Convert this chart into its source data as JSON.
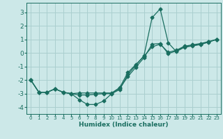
{
  "xlabel": "Humidex (Indice chaleur)",
  "bg_color": "#cce8e8",
  "grid_color": "#aacfcf",
  "line_color": "#1a6e60",
  "xlim": [
    -0.5,
    23.5
  ],
  "ylim": [
    -4.5,
    3.7
  ],
  "xticks": [
    0,
    1,
    2,
    3,
    4,
    5,
    6,
    7,
    8,
    9,
    10,
    11,
    12,
    13,
    14,
    15,
    16,
    17,
    18,
    19,
    20,
    21,
    22,
    23
  ],
  "yticks": [
    -4,
    -3,
    -2,
    -1,
    0,
    1,
    2,
    3
  ],
  "line1_x": [
    0,
    1,
    2,
    3,
    4,
    5,
    6,
    7,
    8,
    9,
    10,
    11,
    12,
    13,
    14,
    15,
    16,
    17,
    18,
    19,
    20,
    21,
    22,
    23
  ],
  "line1_y": [
    -2.0,
    -2.9,
    -2.9,
    -2.65,
    -2.9,
    -3.0,
    -3.45,
    -3.8,
    -3.8,
    -3.55,
    -3.0,
    -2.6,
    -1.75,
    -1.05,
    -0.35,
    0.65,
    0.7,
    -0.05,
    0.15,
    0.45,
    0.55,
    0.65,
    0.82,
    1.0
  ],
  "line2_x": [
    0,
    1,
    2,
    3,
    4,
    5,
    6,
    7,
    8,
    9,
    10,
    11,
    12,
    13,
    14,
    15,
    16,
    17,
    18,
    19,
    20,
    21,
    22,
    23
  ],
  "line2_y": [
    -2.0,
    -2.9,
    -2.9,
    -2.65,
    -2.9,
    -3.0,
    -2.95,
    -2.95,
    -2.95,
    -2.95,
    -2.95,
    -2.55,
    -1.45,
    -0.85,
    -0.25,
    0.45,
    0.65,
    0.05,
    0.2,
    0.5,
    0.6,
    0.7,
    0.84,
    1.0
  ],
  "line3_x": [
    0,
    1,
    2,
    3,
    4,
    5,
    6,
    7,
    8,
    9,
    10,
    11,
    12,
    13,
    14,
    15,
    16,
    17,
    18,
    19,
    20,
    21,
    22,
    23
  ],
  "line3_y": [
    -2.0,
    -2.9,
    -2.9,
    -2.65,
    -2.9,
    -3.0,
    -3.1,
    -3.1,
    -3.05,
    -3.0,
    -3.0,
    -2.7,
    -1.6,
    -0.9,
    -0.2,
    2.6,
    3.25,
    0.75,
    0.1,
    0.42,
    0.52,
    0.62,
    0.8,
    1.0
  ],
  "markersize": 2.5,
  "linewidth": 0.9
}
